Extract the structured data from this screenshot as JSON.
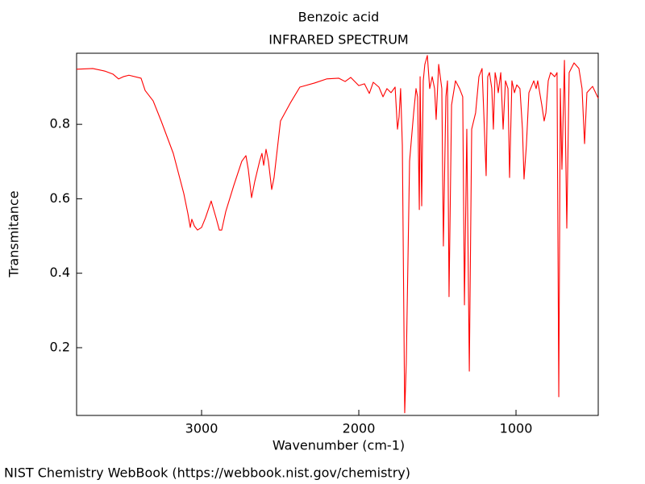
{
  "chart_data": {
    "type": "line",
    "title": "Benzoic acid",
    "subtitle": "INFRARED SPECTRUM",
    "x_label": "Wavenumber (cm-1)",
    "y_label": "Transmitance",
    "source": "NIST Chemistry WebBook (https://webbook.nist.gov/chemistry)",
    "color": "#ff0000",
    "xlim": [
      3795,
      477
    ],
    "ylim": [
      0.018,
      0.991
    ],
    "xticks": [
      3000,
      2000,
      1000
    ],
    "yticks": [
      0.2,
      0.4,
      0.6,
      0.8
    ],
    "x": [
      3795,
      3692,
      3615,
      3564,
      3528,
      3498,
      3462,
      3385,
      3359,
      3308,
      3257,
      3180,
      3113,
      3087,
      3072,
      3062,
      3046,
      3026,
      3000,
      2975,
      2939,
      2908,
      2887,
      2872,
      2846,
      2795,
      2744,
      2718,
      2703,
      2682,
      2662,
      2631,
      2616,
      2605,
      2590,
      2575,
      2554,
      2539,
      2498,
      2436,
      2375,
      2282,
      2205,
      2128,
      2087,
      2051,
      2000,
      1964,
      1933,
      1908,
      1872,
      1846,
      1821,
      1795,
      1769,
      1754,
      1744,
      1734,
      1723,
      1708,
      1698,
      1677,
      1651,
      1636,
      1626,
      1615,
      1610,
      1600,
      1590,
      1580,
      1564,
      1549,
      1533,
      1518,
      1508,
      1492,
      1472,
      1462,
      1446,
      1436,
      1426,
      1410,
      1385,
      1359,
      1339,
      1328,
      1313,
      1297,
      1282,
      1257,
      1236,
      1216,
      1205,
      1190,
      1180,
      1169,
      1154,
      1144,
      1133,
      1123,
      1113,
      1097,
      1082,
      1067,
      1051,
      1041,
      1026,
      1010,
      995,
      975,
      959,
      949,
      934,
      918,
      887,
      872,
      862,
      836,
      821,
      810,
      795,
      780,
      754,
      739,
      728,
      718,
      708,
      692,
      677,
      662,
      631,
      600,
      580,
      564,
      549,
      513,
      477
    ],
    "values": [
      0.948,
      0.95,
      0.943,
      0.935,
      0.922,
      0.928,
      0.932,
      0.924,
      0.891,
      0.863,
      0.809,
      0.722,
      0.614,
      0.56,
      0.523,
      0.545,
      0.527,
      0.516,
      0.523,
      0.549,
      0.594,
      0.549,
      0.516,
      0.516,
      0.566,
      0.636,
      0.701,
      0.716,
      0.679,
      0.603,
      0.646,
      0.701,
      0.722,
      0.69,
      0.733,
      0.701,
      0.625,
      0.657,
      0.809,
      0.857,
      0.9,
      0.911,
      0.922,
      0.924,
      0.915,
      0.926,
      0.904,
      0.909,
      0.883,
      0.913,
      0.9,
      0.874,
      0.896,
      0.885,
      0.9,
      0.787,
      0.82,
      0.896,
      0.744,
      0.025,
      0.159,
      0.701,
      0.831,
      0.896,
      0.874,
      0.571,
      0.928,
      0.581,
      0.917,
      0.961,
      0.985,
      0.896,
      0.928,
      0.896,
      0.813,
      0.961,
      0.896,
      0.473,
      0.874,
      0.917,
      0.337,
      0.852,
      0.917,
      0.896,
      0.874,
      0.315,
      0.787,
      0.137,
      0.787,
      0.831,
      0.928,
      0.95,
      0.831,
      0.662,
      0.928,
      0.939,
      0.896,
      0.787,
      0.939,
      0.917,
      0.885,
      0.939,
      0.787,
      0.917,
      0.896,
      0.657,
      0.917,
      0.885,
      0.906,
      0.896,
      0.787,
      0.653,
      0.744,
      0.885,
      0.917,
      0.896,
      0.917,
      0.852,
      0.809,
      0.831,
      0.917,
      0.939,
      0.928,
      0.939,
      0.068,
      0.896,
      0.679,
      0.972,
      0.521,
      0.939,
      0.965,
      0.95,
      0.896,
      0.748,
      0.885,
      0.902,
      0.87
    ]
  }
}
